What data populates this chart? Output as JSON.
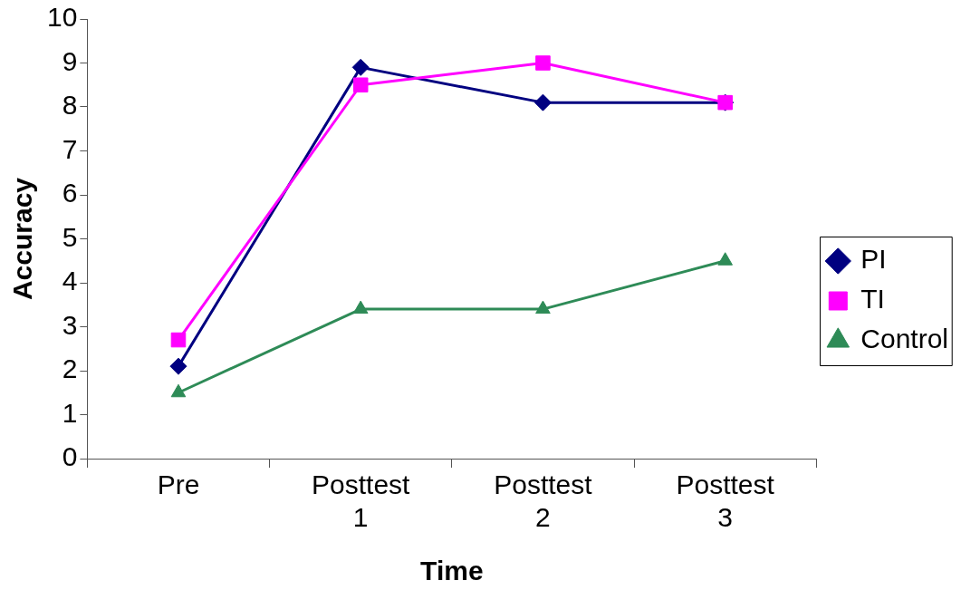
{
  "chart_data": {
    "type": "line",
    "xlabel": "Time",
    "ylabel": "Accuracy",
    "categories": [
      "Pre",
      "Posttest 1",
      "Posttest 2",
      "Posttest 3"
    ],
    "series": [
      {
        "name": "PI",
        "color": "#000080",
        "marker": "diamond",
        "values": [
          2.1,
          8.9,
          8.1,
          8.1
        ]
      },
      {
        "name": "TI",
        "color": "#ff00ff",
        "marker": "square",
        "values": [
          2.7,
          8.5,
          9.0,
          8.1
        ]
      },
      {
        "name": "Control",
        "color": "#2e8b57",
        "marker": "triangle",
        "values": [
          1.5,
          3.4,
          3.4,
          4.5
        ]
      }
    ],
    "ylim": [
      0,
      10
    ],
    "yticks": [
      0,
      1,
      2,
      3,
      4,
      5,
      6,
      7,
      8,
      9,
      10
    ],
    "grid": false,
    "legend": "right",
    "line_style": "solid"
  }
}
